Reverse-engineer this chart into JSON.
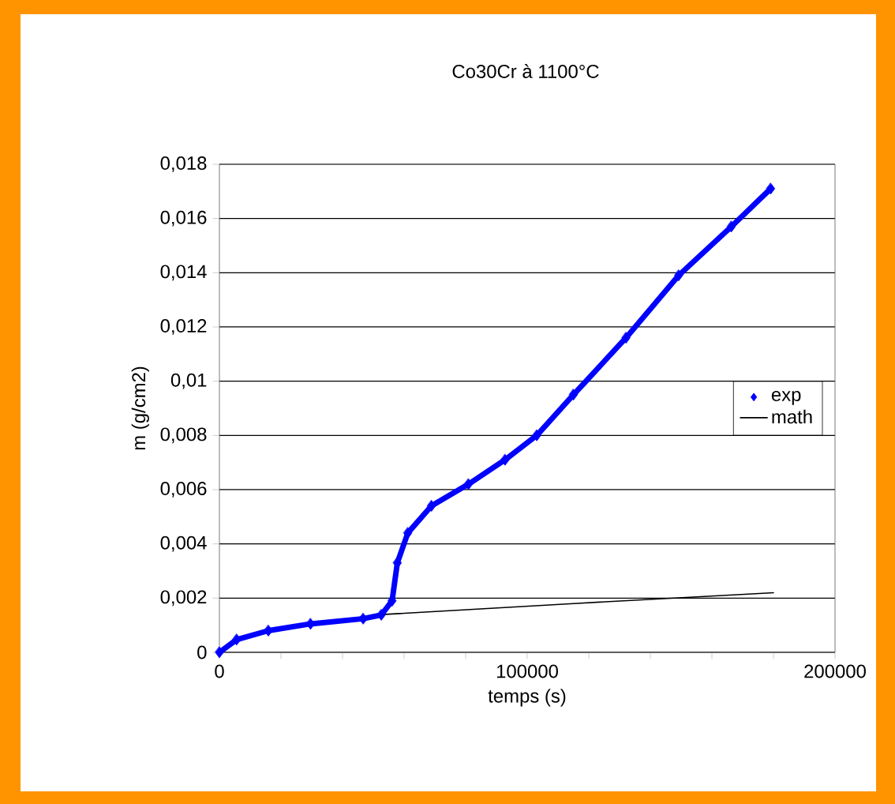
{
  "chart_data": {
    "type": "line",
    "title": "Co30Cr à 1100°C",
    "xlabel": "temps (s)",
    "ylabel": "m (g/cm2)",
    "xlim": [
      0,
      200000
    ],
    "ylim": [
      0,
      0.018
    ],
    "xticks": [
      0,
      {
        "value": 20000,
        "label": null
      },
      {
        "value": 40000,
        "label": null
      },
      {
        "value": 60000,
        "label": null
      },
      {
        "value": 80000,
        "label": null
      },
      100000,
      {
        "value": 120000,
        "label": null
      },
      {
        "value": 140000,
        "label": null
      },
      {
        "value": 160000,
        "label": null
      },
      {
        "value": 180000,
        "label": null
      },
      200000
    ],
    "yticks": [
      {
        "value": 0,
        "label": "0"
      },
      {
        "value": 0.002,
        "label": "0,002"
      },
      {
        "value": 0.004,
        "label": "0,004"
      },
      {
        "value": 0.006,
        "label": "0,006"
      },
      {
        "value": 0.008,
        "label": "0,008"
      },
      {
        "value": 0.01,
        "label": "0,01"
      },
      {
        "value": 0.012,
        "label": "0,012"
      },
      {
        "value": 0.014,
        "label": "0,014"
      },
      {
        "value": 0.016,
        "label": "0,016"
      },
      {
        "value": 0.018,
        "label": "0,018"
      }
    ],
    "grid": "y",
    "legend": "right",
    "series": [
      {
        "name": "exp",
        "color": "#0000ff",
        "marker": "diamond",
        "x": [
          0,
          5600,
          15900,
          29600,
          46700,
          52600,
          56100,
          57800,
          61200,
          68900,
          80900,
          92800,
          103100,
          115000,
          132100,
          149200,
          166300,
          179100
        ],
        "values": [
          0,
          0.00047,
          0.0008,
          0.00105,
          0.00124,
          0.00138,
          0.0019,
          0.0033,
          0.0044,
          0.0054,
          0.0062,
          0.0071,
          0.008,
          0.0095,
          0.0116,
          0.0139,
          0.0157,
          0.0171
        ]
      },
      {
        "name": "math",
        "color": "#000000",
        "marker": "none",
        "x": [
          54000,
          115000,
          180000
        ],
        "values": [
          0.0014,
          0.0018,
          0.0022
        ]
      }
    ]
  }
}
